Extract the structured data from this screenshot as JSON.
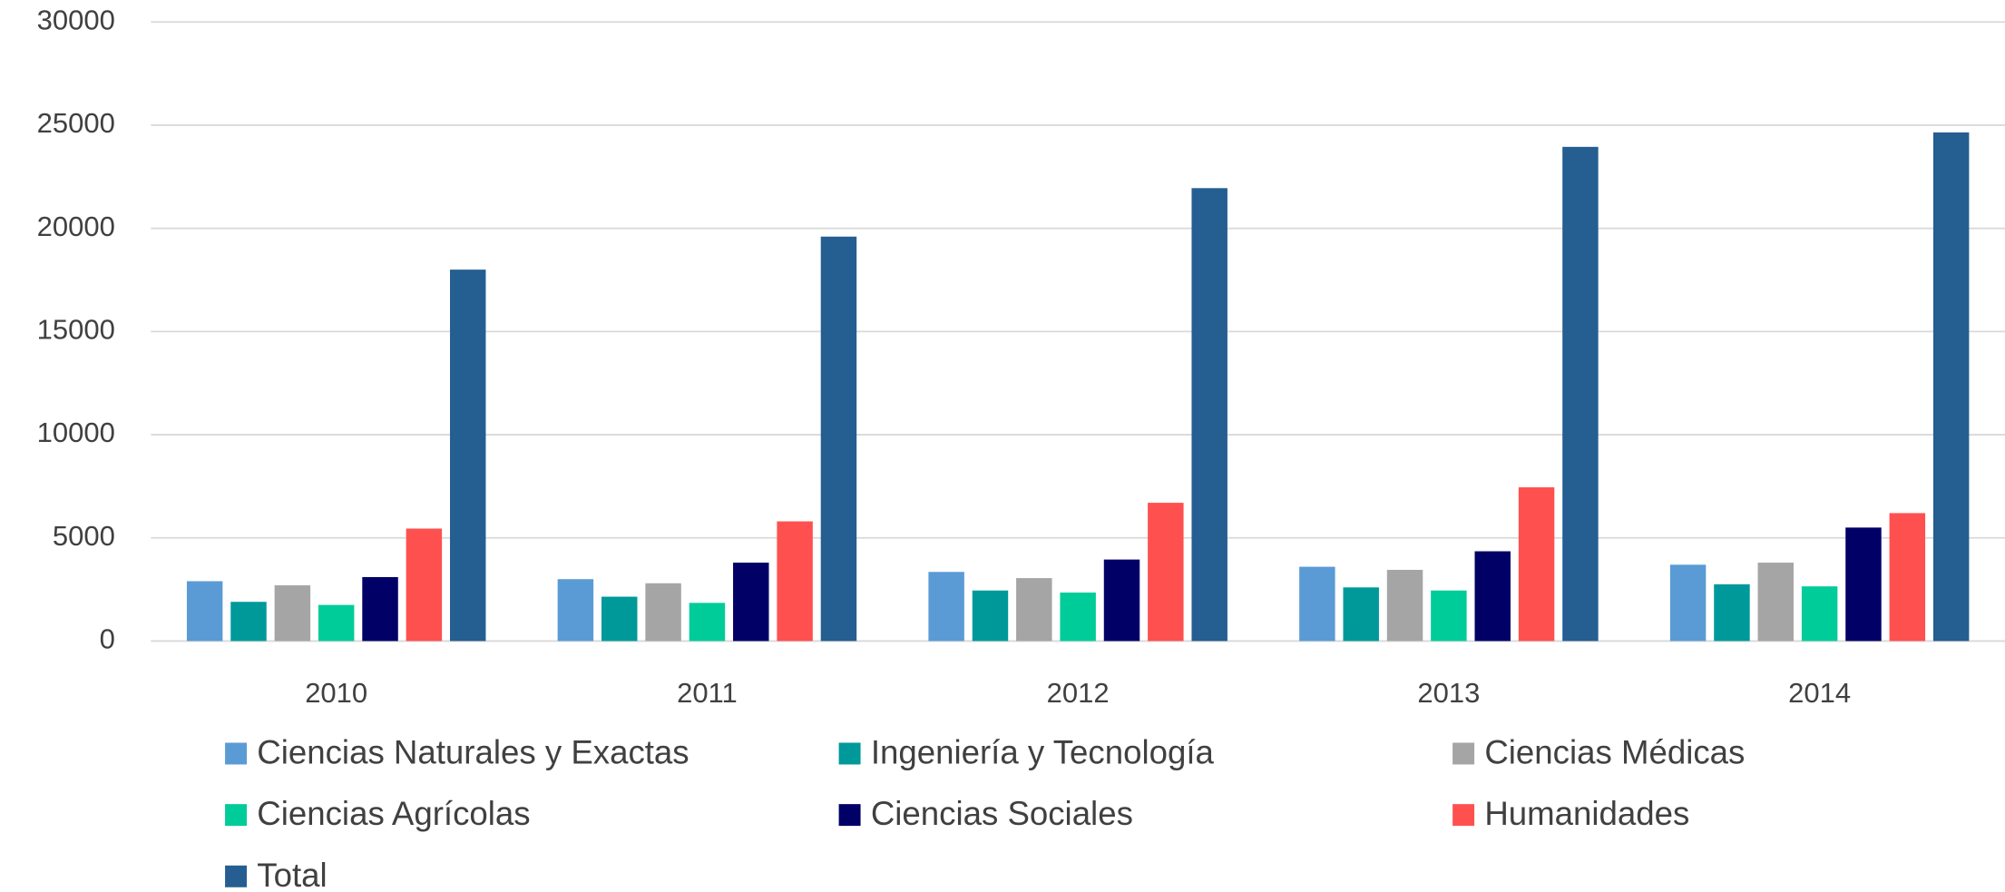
{
  "chart_data": {
    "type": "bar",
    "categories": [
      "2010",
      "2011",
      "2012",
      "2013",
      "2014"
    ],
    "series": [
      {
        "name": "Ciencias Naturales y Exactas",
        "color": "#5b9bd5",
        "values": [
          2900,
          3000,
          3350,
          3600,
          3700
        ]
      },
      {
        "name": "Ingeniería y Tecnología",
        "color": "#00999a",
        "values": [
          1900,
          2150,
          2450,
          2600,
          2750
        ]
      },
      {
        "name": "Ciencias Médicas",
        "color": "#a5a5a5",
        "values": [
          2700,
          2800,
          3050,
          3450,
          3800
        ]
      },
      {
        "name": "Ciencias Agrícolas",
        "color": "#00cc99",
        "values": [
          1750,
          1850,
          2350,
          2450,
          2650
        ]
      },
      {
        "name": "Ciencias Sociales",
        "color": "#000066",
        "values": [
          3100,
          3800,
          3950,
          4350,
          5500
        ]
      },
      {
        "name": "Humanidades",
        "color": "#ff5050",
        "values": [
          5450,
          5800,
          6700,
          7450,
          6200
        ]
      },
      {
        "name": "Total",
        "color": "#255e91",
        "values": [
          18000,
          19600,
          21950,
          23950,
          24650
        ]
      }
    ],
    "ylim": [
      0,
      30000
    ],
    "yticks": [
      0,
      5000,
      10000,
      15000,
      20000,
      25000,
      30000
    ],
    "grid": true,
    "legend": "bottom"
  }
}
